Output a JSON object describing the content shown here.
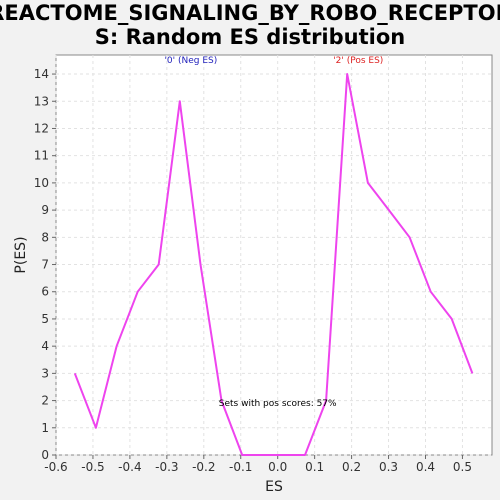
{
  "chart_data": {
    "type": "line",
    "title_lines": [
      "REACTOME_SIGNALING_BY_ROBO_RECEPTOR",
      "S: Random ES distribution"
    ],
    "xlabel": "ES",
    "ylabel": "P(ES)",
    "xlim": [
      -0.6,
      0.58
    ],
    "ylim": [
      0,
      14.7
    ],
    "x_ticks": [
      -0.6,
      -0.5,
      -0.4,
      -0.3,
      -0.2,
      -0.1,
      0.0,
      0.1,
      0.2,
      0.3,
      0.4,
      0.5
    ],
    "x_tick_labels": [
      "-0.6",
      "-0.5",
      "-0.4",
      "-0.3",
      "-0.2",
      "-0.1",
      "0.0",
      "0.1",
      "0.2",
      "0.3",
      "0.4",
      "0.5"
    ],
    "y_ticks": [
      0,
      1,
      2,
      3,
      4,
      5,
      6,
      7,
      8,
      9,
      10,
      11,
      12,
      13,
      14
    ],
    "y_tick_labels": [
      "0",
      "1",
      "2",
      "3",
      "4",
      "5",
      "6",
      "7",
      "8",
      "9",
      "10",
      "11",
      "12",
      "13",
      "14"
    ],
    "grid": true,
    "series": [
      {
        "color": "#ee44ee",
        "x": [
          -0.549,
          -0.492,
          -0.436,
          -0.379,
          -0.322,
          -0.265,
          -0.209,
          -0.152,
          -0.096,
          -0.039,
          0.018,
          0.074,
          0.131,
          0.188,
          0.244,
          0.301,
          0.357,
          0.414,
          0.471,
          0.527
        ],
        "y": [
          3,
          1,
          4,
          6,
          7,
          13,
          7,
          2,
          0,
          0,
          0,
          0,
          2,
          14,
          10,
          9,
          8,
          6,
          5,
          3
        ]
      }
    ],
    "annotations": [
      {
        "text": "'0' (Neg ES)",
        "x": -0.235,
        "y": 14.4,
        "color": "#2222bb"
      },
      {
        "text": "'2' (Pos ES)",
        "x": 0.218,
        "y": 14.4,
        "color": "#dd2222"
      },
      {
        "text": "Sets with pos scores: 57%",
        "x": 0.0,
        "y": 1.8,
        "color": "#000000"
      }
    ]
  }
}
